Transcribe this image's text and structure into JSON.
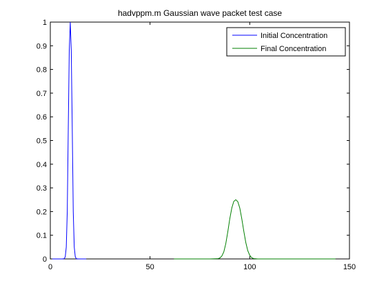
{
  "chart_data": {
    "type": "line",
    "title": "hadvppm.m Gaussian wave packet test case",
    "xlabel": "",
    "ylabel": "",
    "xlim": [
      0,
      150
    ],
    "ylim": [
      0,
      1
    ],
    "xticks": [
      0,
      50,
      100,
      150
    ],
    "yticks": [
      0,
      0.1,
      0.2,
      0.3,
      0.4,
      0.5,
      0.6,
      0.7,
      0.8,
      0.9,
      1
    ],
    "xtick_labels": [
      "0",
      "50",
      "100",
      "150"
    ],
    "ytick_labels": [
      "0",
      "0.1",
      "0.2",
      "0.3",
      "0.4",
      "0.5",
      "0.6",
      "0.7",
      "0.8",
      "0.9",
      "1"
    ],
    "grid": false,
    "legend_placement": "top-right",
    "series": [
      {
        "name": "Initial Concentration",
        "color": "#0000ff",
        "x": [
          1,
          2,
          3,
          4,
          5,
          6,
          7,
          7.5,
          8,
          8.5,
          9,
          9.5,
          10,
          10.5,
          11,
          11.5,
          12,
          12.5,
          13,
          14,
          15,
          16,
          17,
          18
        ],
        "y": [
          0,
          0,
          0,
          0,
          0,
          0,
          0.001,
          0.01,
          0.05,
          0.2,
          0.55,
          0.88,
          1.0,
          0.88,
          0.55,
          0.2,
          0.05,
          0.01,
          0.001,
          0,
          0,
          0,
          0,
          0
        ]
      },
      {
        "name": "Final Concentration",
        "color": "#007f00",
        "x": [
          62,
          70,
          80,
          84,
          85,
          86,
          87,
          88,
          89,
          90,
          91,
          92,
          93,
          94,
          95,
          96,
          97,
          98,
          99,
          100,
          101,
          102,
          104,
          110,
          120,
          130,
          143
        ],
        "y": [
          0,
          0,
          0,
          0.001,
          0.004,
          0.012,
          0.03,
          0.065,
          0.115,
          0.17,
          0.215,
          0.243,
          0.25,
          0.242,
          0.215,
          0.17,
          0.118,
          0.07,
          0.035,
          0.015,
          0.005,
          0.0015,
          0,
          0,
          0,
          0,
          0
        ]
      }
    ]
  }
}
